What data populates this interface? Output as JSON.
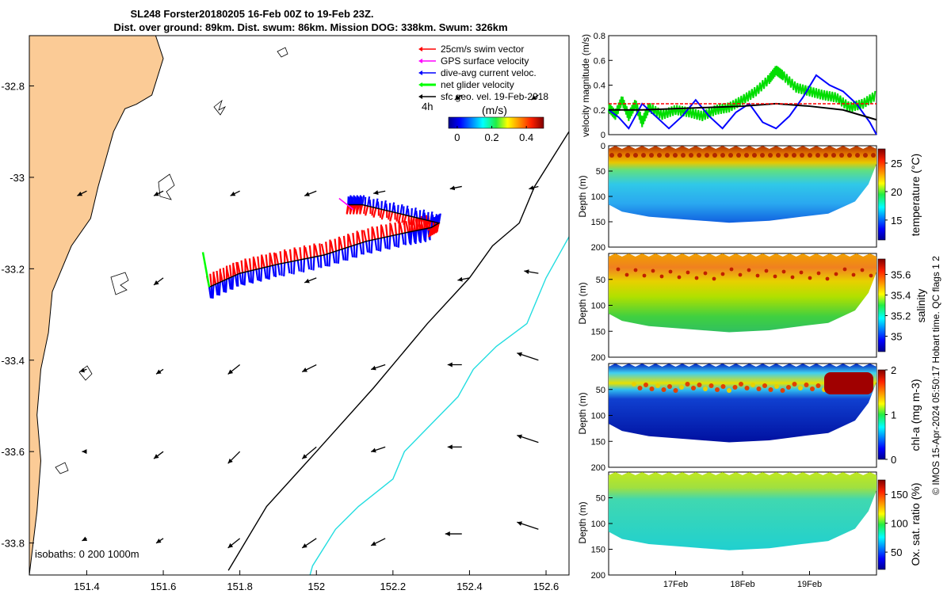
{
  "header": {
    "title_line1": "SL248 Forster20180205 16-Feb 00Z to 19-Feb 23Z.",
    "title_line2": "Dist. over ground: 89km. Dist. swum: 86km. Mission DOG: 338km. Swum: 326km"
  },
  "side_caption": "© IMOS 15-Apr-2024 05:50:17 Hobart time. QC flags 1  2",
  "colors": {
    "land": "#FBCB96",
    "swim": "#FF0000",
    "gps": "#FF00FF",
    "current": "#0000FF",
    "net": "#00FF00",
    "geo": "#000000",
    "isobath_200": "#000000",
    "isobath_1000": "#22DDE0"
  },
  "chart_data": [
    {
      "type": "map",
      "name": "glider_track_map",
      "lon_range": [
        151.25,
        152.66
      ],
      "lat_range": [
        -33.87,
        -32.69
      ],
      "x_ticks": [
        "151.4",
        "151.6",
        "151.8",
        "152",
        "152.2",
        "152.4",
        "152.6"
      ],
      "x_tick_values": [
        151.4,
        151.6,
        151.8,
        152.0,
        152.2,
        152.4,
        152.6
      ],
      "y_ticks": [
        "-32.8",
        "-33",
        "-33.2",
        "-33.4",
        "-33.6",
        "-33.8"
      ],
      "y_tick_values": [
        -32.8,
        -33.0,
        -33.2,
        -33.4,
        -33.6,
        -33.8
      ],
      "legend": [
        {
          "label": "25cm/s swim vector",
          "color": "#FF0000"
        },
        {
          "label": "GPS surface velocity",
          "color": "#FF00FF"
        },
        {
          "label": "dive-avg current veloc.",
          "color": "#0000FF"
        },
        {
          "label": "net glider velocity",
          "color": "#00FF00"
        },
        {
          "label": "sfc geo. vel. 19-Feb-2018",
          "color": "#000000"
        }
      ],
      "legend_placement": "top-right",
      "colorbar": {
        "label": "(m/s)",
        "prefix": "4h",
        "ticks": [
          "0",
          "0.2",
          "0.4"
        ],
        "range": [
          -0.05,
          0.5
        ],
        "colormap": "jet"
      },
      "isobaths_label": "isobaths: 0   200  1000m",
      "track": [
        [
          151.72,
          -33.24
        ],
        [
          151.8,
          -33.21
        ],
        [
          151.9,
          -33.19
        ],
        [
          152.02,
          -33.17
        ],
        [
          152.13,
          -33.14
        ],
        [
          152.24,
          -33.12
        ],
        [
          152.3,
          -33.11
        ],
        [
          152.32,
          -33.1
        ],
        [
          152.22,
          -33.08
        ],
        [
          152.12,
          -33.06
        ],
        [
          152.08,
          -33.06
        ]
      ],
      "isobath_200": [
        [
          152.66,
          -32.9
        ],
        [
          152.57,
          -33.02
        ],
        [
          152.53,
          -33.1
        ],
        [
          152.46,
          -33.15
        ],
        [
          152.4,
          -33.22
        ],
        [
          152.29,
          -33.32
        ],
        [
          152.15,
          -33.46
        ],
        [
          152.0,
          -33.6
        ],
        [
          151.87,
          -33.72
        ],
        [
          151.77,
          -33.86
        ]
      ],
      "isobath_1000": [
        [
          152.66,
          -33.13
        ],
        [
          152.6,
          -33.22
        ],
        [
          152.55,
          -33.32
        ],
        [
          152.47,
          -33.37
        ],
        [
          152.41,
          -33.42
        ],
        [
          152.37,
          -33.48
        ],
        [
          152.3,
          -33.54
        ],
        [
          152.23,
          -33.6
        ],
        [
          152.2,
          -33.66
        ],
        [
          152.11,
          -33.72
        ],
        [
          152.05,
          -33.77
        ],
        [
          151.99,
          -33.85
        ],
        [
          151.98,
          -33.88
        ]
      ],
      "coast": [
        [
          151.25,
          -32.69
        ],
        [
          151.58,
          -32.69
        ],
        [
          151.6,
          -32.74
        ],
        [
          151.57,
          -32.82
        ],
        [
          151.53,
          -32.84
        ],
        [
          151.5,
          -32.85
        ],
        [
          151.47,
          -32.9
        ],
        [
          151.45,
          -32.96
        ],
        [
          151.43,
          -33.02
        ],
        [
          151.41,
          -33.09
        ],
        [
          151.36,
          -33.15
        ],
        [
          151.31,
          -33.25
        ],
        [
          151.3,
          -33.34
        ],
        [
          151.28,
          -33.42
        ],
        [
          151.27,
          -33.52
        ],
        [
          151.28,
          -33.62
        ],
        [
          151.27,
          -33.73
        ],
        [
          151.25,
          -33.87
        ]
      ],
      "geo_arrows": [
        [
          151.4,
          -33.03,
          -0.04,
          -0.02
        ],
        [
          151.6,
          -33.03,
          -0.04,
          -0.02
        ],
        [
          151.8,
          -33.03,
          -0.04,
          -0.02
        ],
        [
          152.0,
          -33.03,
          -0.05,
          -0.02
        ],
        [
          152.18,
          -33.03,
          -0.05,
          -0.01
        ],
        [
          152.38,
          -33.02,
          -0.05,
          -0.01
        ],
        [
          152.58,
          -33.02,
          -0.04,
          -0.01
        ],
        [
          151.6,
          -33.22,
          -0.04,
          -0.03
        ],
        [
          152.0,
          -33.22,
          -0.05,
          -0.02
        ],
        [
          152.4,
          -33.22,
          -0.05,
          -0.01
        ],
        [
          152.58,
          -33.21,
          -0.06,
          0.01
        ],
        [
          151.4,
          -33.42,
          -0.03,
          -0.01
        ],
        [
          151.6,
          -33.42,
          -0.03,
          -0.02
        ],
        [
          151.8,
          -33.41,
          -0.05,
          -0.04
        ],
        [
          152.0,
          -33.41,
          -0.06,
          -0.03
        ],
        [
          152.18,
          -33.41,
          -0.06,
          -0.02
        ],
        [
          152.38,
          -33.41,
          -0.06,
          0.0
        ],
        [
          152.58,
          -33.4,
          -0.09,
          0.03
        ],
        [
          151.4,
          -33.6,
          -0.02,
          0.0
        ],
        [
          151.6,
          -33.6,
          -0.04,
          -0.03
        ],
        [
          151.8,
          -33.6,
          -0.05,
          -0.05
        ],
        [
          152.0,
          -33.59,
          -0.06,
          -0.05
        ],
        [
          152.18,
          -33.59,
          -0.06,
          -0.02
        ],
        [
          152.38,
          -33.59,
          -0.06,
          0.0
        ],
        [
          152.58,
          -33.58,
          -0.09,
          0.03
        ],
        [
          151.4,
          -33.79,
          -0.02,
          -0.01
        ],
        [
          151.6,
          -33.79,
          -0.03,
          -0.02
        ],
        [
          151.8,
          -33.79,
          -0.05,
          -0.04
        ],
        [
          152.0,
          -33.79,
          -0.06,
          -0.04
        ],
        [
          152.18,
          -33.79,
          -0.06,
          -0.03
        ],
        [
          152.38,
          -33.78,
          -0.07,
          0.0
        ],
        [
          152.58,
          -33.77,
          -0.09,
          0.03
        ],
        [
          152.38,
          -32.82,
          -0.03,
          -0.02
        ],
        [
          152.58,
          -32.82,
          -0.03,
          -0.02
        ]
      ]
    },
    {
      "type": "line",
      "name": "velocity_magnitude",
      "ylabel": "velocity magnitude (m/s)",
      "x_range": [
        0,
        4
      ],
      "ylim": [
        0,
        0.8
      ],
      "y_ticks": [
        "0",
        "0.2",
        "0.4",
        "0.6",
        "0.8"
      ],
      "series": [
        {
          "color": "#00DD00",
          "x": [
            0.0,
            0.1,
            0.2,
            0.3,
            0.4,
            0.5,
            0.6,
            0.8,
            1.0,
            1.2,
            1.4,
            1.6,
            1.8,
            2.0,
            2.2,
            2.4,
            2.5,
            2.6,
            2.8,
            3.0,
            3.2,
            3.4,
            3.6,
            3.8,
            4.0
          ],
          "y": [
            0.22,
            0.16,
            0.28,
            0.15,
            0.25,
            0.1,
            0.22,
            0.16,
            0.2,
            0.18,
            0.15,
            0.2,
            0.22,
            0.28,
            0.35,
            0.45,
            0.52,
            0.48,
            0.38,
            0.35,
            0.32,
            0.3,
            0.22,
            0.25,
            0.32
          ]
        },
        {
          "color": "#0000FF",
          "x": [
            0.0,
            0.15,
            0.3,
            0.5,
            0.7,
            0.9,
            1.1,
            1.3,
            1.5,
            1.7,
            1.9,
            2.1,
            2.3,
            2.5,
            2.7,
            2.9,
            3.1,
            3.3,
            3.5,
            3.7,
            3.9,
            4.0
          ],
          "y": [
            0.2,
            0.14,
            0.05,
            0.25,
            0.15,
            0.05,
            0.15,
            0.28,
            0.15,
            0.05,
            0.18,
            0.25,
            0.1,
            0.05,
            0.15,
            0.3,
            0.48,
            0.4,
            0.35,
            0.25,
            0.1,
            0.0
          ]
        },
        {
          "color": "#000000",
          "x": [
            0.0,
            0.5,
            1.0,
            1.5,
            2.0,
            2.5,
            3.0,
            3.5,
            4.0
          ],
          "y": [
            0.2,
            0.2,
            0.21,
            0.22,
            0.23,
            0.25,
            0.23,
            0.2,
            0.12
          ]
        },
        {
          "color": "#FF0000",
          "dashed": true,
          "x": [
            0.0,
            4.0
          ],
          "y": [
            0.25,
            0.25
          ]
        }
      ]
    },
    {
      "type": "heatmap",
      "name": "temperature_section",
      "ylabel": "Depth (m)",
      "y_ticks": [
        "0",
        "50",
        "100",
        "150",
        "200"
      ],
      "ylim": [
        0,
        200
      ],
      "colorbar_label": "temperature (°C)",
      "colorbar_ticks": [
        "15",
        "20",
        "25"
      ],
      "colorbar_range": [
        11.5,
        27.5
      ]
    },
    {
      "type": "heatmap",
      "name": "salinity_section",
      "ylabel": "Depth (m)",
      "y_ticks": [
        "50",
        "100",
        "150",
        "200"
      ],
      "ylim": [
        0,
        200
      ],
      "colorbar_label": "salinity",
      "colorbar_ticks": [
        "35",
        "35.2",
        "35.4",
        "35.6"
      ],
      "colorbar_range": [
        34.85,
        35.75
      ]
    },
    {
      "type": "heatmap",
      "name": "chla_section",
      "ylabel": "Depth (m)",
      "y_ticks": [
        "50",
        "100",
        "150",
        "200"
      ],
      "ylim": [
        0,
        200
      ],
      "colorbar_label": "chl-a (mg m-3)",
      "colorbar_ticks": [
        "0",
        "1",
        "2"
      ],
      "colorbar_range": [
        0,
        2
      ]
    },
    {
      "type": "heatmap",
      "name": "oxygen_section",
      "ylabel": "Depth (m)",
      "y_ticks": [
        "50",
        "100",
        "150",
        "200"
      ],
      "ylim": [
        0,
        200
      ],
      "colorbar_label": "Ox. sat. ratio (%)",
      "colorbar_ticks": [
        "50",
        "100",
        "150"
      ],
      "colorbar_range": [
        20,
        175
      ],
      "x_ticks": [
        "17Feb",
        "18Feb",
        "19Feb"
      ],
      "x_tick_values": [
        1,
        2,
        3
      ]
    }
  ]
}
